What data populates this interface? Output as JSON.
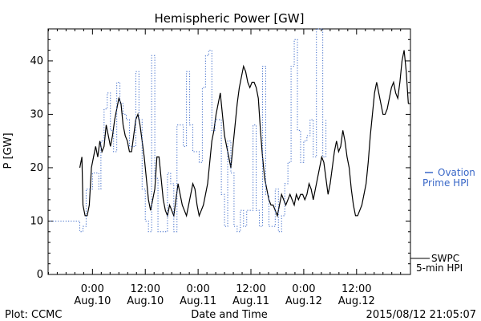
{
  "chart_data": {
    "type": "line",
    "title": "Hemispheric Power [GW]",
    "ylabel": "P [GW]",
    "xlabel": "Date and Time",
    "ylim": [
      0,
      46
    ],
    "yticks": [
      0,
      10,
      20,
      30,
      40
    ],
    "xlim": [
      -0.42,
      3.01
    ],
    "xticks": [
      {
        "x": 0.0,
        "line1": "0:00",
        "line2": "Aug.10"
      },
      {
        "x": 0.5,
        "line1": "12:00",
        "line2": "Aug.10"
      },
      {
        "x": 1.0,
        "line1": "0:00",
        "line2": "Aug.11"
      },
      {
        "x": 1.5,
        "line1": "12:00",
        "line2": "Aug.11"
      },
      {
        "x": 2.0,
        "line1": "0:00",
        "line2": "Aug.12"
      },
      {
        "x": 2.5,
        "line1": "12:00",
        "line2": "Aug.12"
      }
    ],
    "x_units": "days since 2015-08-10 00:00",
    "series": [
      {
        "name": "SWPC 5-min HPI",
        "legend_line1": "SWPC",
        "legend_line2": "5-min HPI",
        "color": "#000000",
        "style": "solid",
        "points": [
          [
            -0.12,
            20
          ],
          [
            -0.1,
            22
          ],
          [
            -0.09,
            13
          ],
          [
            -0.07,
            11
          ],
          [
            -0.05,
            11
          ],
          [
            -0.03,
            13
          ],
          [
            -0.01,
            20
          ],
          [
            0.01,
            22
          ],
          [
            0.03,
            24
          ],
          [
            0.05,
            22
          ],
          [
            0.07,
            25
          ],
          [
            0.09,
            23
          ],
          [
            0.11,
            24
          ],
          [
            0.13,
            28
          ],
          [
            0.15,
            26
          ],
          [
            0.17,
            24
          ],
          [
            0.19,
            26
          ],
          [
            0.21,
            29
          ],
          [
            0.23,
            31
          ],
          [
            0.25,
            33
          ],
          [
            0.27,
            32
          ],
          [
            0.29,
            28
          ],
          [
            0.31,
            26
          ],
          [
            0.33,
            25
          ],
          [
            0.35,
            23
          ],
          [
            0.37,
            23
          ],
          [
            0.39,
            26
          ],
          [
            0.41,
            29
          ],
          [
            0.43,
            30
          ],
          [
            0.45,
            28
          ],
          [
            0.47,
            25
          ],
          [
            0.49,
            22
          ],
          [
            0.51,
            18
          ],
          [
            0.53,
            14
          ],
          [
            0.55,
            12
          ],
          [
            0.57,
            14
          ],
          [
            0.59,
            16
          ],
          [
            0.61,
            22
          ],
          [
            0.63,
            22
          ],
          [
            0.65,
            18
          ],
          [
            0.67,
            14
          ],
          [
            0.69,
            12
          ],
          [
            0.71,
            11
          ],
          [
            0.73,
            13
          ],
          [
            0.75,
            12
          ],
          [
            0.77,
            11
          ],
          [
            0.79,
            14
          ],
          [
            0.81,
            17
          ],
          [
            0.83,
            15
          ],
          [
            0.85,
            13
          ],
          [
            0.87,
            12
          ],
          [
            0.89,
            11
          ],
          [
            0.91,
            13
          ],
          [
            0.93,
            15
          ],
          [
            0.95,
            17
          ],
          [
            0.97,
            16
          ],
          [
            0.99,
            13
          ],
          [
            1.01,
            11
          ],
          [
            1.03,
            12
          ],
          [
            1.05,
            13
          ],
          [
            1.07,
            15
          ],
          [
            1.09,
            17
          ],
          [
            1.11,
            21
          ],
          [
            1.13,
            25
          ],
          [
            1.15,
            27
          ],
          [
            1.17,
            30
          ],
          [
            1.19,
            32
          ],
          [
            1.21,
            34
          ],
          [
            1.23,
            30
          ],
          [
            1.25,
            26
          ],
          [
            1.27,
            24
          ],
          [
            1.29,
            22
          ],
          [
            1.31,
            20
          ],
          [
            1.33,
            24
          ],
          [
            1.35,
            28
          ],
          [
            1.37,
            32
          ],
          [
            1.39,
            35
          ],
          [
            1.41,
            37
          ],
          [
            1.43,
            39
          ],
          [
            1.45,
            38
          ],
          [
            1.47,
            36
          ],
          [
            1.49,
            35
          ],
          [
            1.51,
            36
          ],
          [
            1.53,
            36
          ],
          [
            1.55,
            35
          ],
          [
            1.57,
            33
          ],
          [
            1.59,
            27
          ],
          [
            1.61,
            22
          ],
          [
            1.63,
            18
          ],
          [
            1.65,
            16
          ],
          [
            1.67,
            14
          ],
          [
            1.69,
            13
          ],
          [
            1.71,
            13
          ],
          [
            1.73,
            12
          ],
          [
            1.75,
            11
          ],
          [
            1.77,
            13
          ],
          [
            1.79,
            15
          ],
          [
            1.81,
            14
          ],
          [
            1.83,
            13
          ],
          [
            1.85,
            14
          ],
          [
            1.87,
            15
          ],
          [
            1.89,
            14
          ],
          [
            1.91,
            13
          ],
          [
            1.93,
            15
          ],
          [
            1.95,
            14
          ],
          [
            1.97,
            15
          ],
          [
            1.99,
            15
          ],
          [
            2.01,
            14
          ],
          [
            2.03,
            15
          ],
          [
            2.05,
            17
          ],
          [
            2.07,
            16
          ],
          [
            2.09,
            14
          ],
          [
            2.11,
            16
          ],
          [
            2.13,
            18
          ],
          [
            2.15,
            20
          ],
          [
            2.17,
            22
          ],
          [
            2.19,
            21
          ],
          [
            2.21,
            18
          ],
          [
            2.23,
            15
          ],
          [
            2.25,
            17
          ],
          [
            2.27,
            20
          ],
          [
            2.29,
            23
          ],
          [
            2.31,
            25
          ],
          [
            2.33,
            23
          ],
          [
            2.35,
            24
          ],
          [
            2.37,
            27
          ],
          [
            2.39,
            25
          ],
          [
            2.41,
            22
          ],
          [
            2.43,
            20
          ],
          [
            2.45,
            16
          ],
          [
            2.47,
            13
          ],
          [
            2.49,
            11
          ],
          [
            2.51,
            11
          ],
          [
            2.53,
            12
          ],
          [
            2.55,
            13
          ],
          [
            2.57,
            15
          ],
          [
            2.59,
            17
          ],
          [
            2.61,
            21
          ],
          [
            2.63,
            26
          ],
          [
            2.65,
            30
          ],
          [
            2.67,
            34
          ],
          [
            2.69,
            36
          ],
          [
            2.71,
            34
          ],
          [
            2.73,
            32
          ],
          [
            2.75,
            30
          ],
          [
            2.77,
            30
          ],
          [
            2.79,
            31
          ],
          [
            2.81,
            33
          ],
          [
            2.83,
            35
          ],
          [
            2.85,
            36
          ],
          [
            2.87,
            34
          ],
          [
            2.89,
            33
          ],
          [
            2.91,
            36
          ],
          [
            2.93,
            40
          ],
          [
            2.95,
            42
          ],
          [
            2.97,
            38
          ],
          [
            2.99,
            32
          ]
        ]
      },
      {
        "name": "Ovation Prime HPI",
        "legend_line1": "Ovation",
        "legend_line2": "Prime HPI",
        "color": "#3a68c8",
        "style": "dotted-step",
        "points": [
          [
            -0.4,
            10
          ],
          [
            -0.39,
            10
          ],
          [
            -0.2,
            10
          ],
          [
            -0.12,
            8
          ],
          [
            -0.09,
            9
          ],
          [
            -0.06,
            16
          ],
          [
            -0.03,
            16
          ],
          [
            0.0,
            19
          ],
          [
            0.03,
            19
          ],
          [
            0.06,
            16
          ],
          [
            0.08,
            25
          ],
          [
            0.11,
            31
          ],
          [
            0.14,
            34
          ],
          [
            0.17,
            27
          ],
          [
            0.2,
            23
          ],
          [
            0.23,
            36
          ],
          [
            0.26,
            32
          ],
          [
            0.29,
            30
          ],
          [
            0.32,
            29
          ],
          [
            0.35,
            24
          ],
          [
            0.38,
            24
          ],
          [
            0.41,
            38
          ],
          [
            0.44,
            29
          ],
          [
            0.47,
            16
          ],
          [
            0.5,
            10
          ],
          [
            0.53,
            8
          ],
          [
            0.56,
            41
          ],
          [
            0.59,
            18
          ],
          [
            0.62,
            8
          ],
          [
            0.65,
            8
          ],
          [
            0.68,
            8
          ],
          [
            0.71,
            19
          ],
          [
            0.74,
            17
          ],
          [
            0.77,
            8
          ],
          [
            0.8,
            28
          ],
          [
            0.83,
            28
          ],
          [
            0.86,
            24
          ],
          [
            0.89,
            38
          ],
          [
            0.92,
            28
          ],
          [
            0.95,
            23
          ],
          [
            0.98,
            23
          ],
          [
            1.01,
            21
          ],
          [
            1.04,
            35
          ],
          [
            1.07,
            41
          ],
          [
            1.1,
            42
          ],
          [
            1.13,
            27
          ],
          [
            1.16,
            29
          ],
          [
            1.19,
            29
          ],
          [
            1.22,
            15
          ],
          [
            1.25,
            9
          ],
          [
            1.28,
            25
          ],
          [
            1.31,
            19
          ],
          [
            1.34,
            9
          ],
          [
            1.37,
            8
          ],
          [
            1.4,
            12
          ],
          [
            1.43,
            9
          ],
          [
            1.46,
            12
          ],
          [
            1.49,
            12
          ],
          [
            1.52,
            28
          ],
          [
            1.55,
            12
          ],
          [
            1.58,
            9
          ],
          [
            1.61,
            39
          ],
          [
            1.64,
            15
          ],
          [
            1.67,
            9
          ],
          [
            1.7,
            9
          ],
          [
            1.73,
            16
          ],
          [
            1.76,
            8
          ],
          [
            1.79,
            11
          ],
          [
            1.82,
            17
          ],
          [
            1.85,
            21
          ],
          [
            1.88,
            39
          ],
          [
            1.91,
            44
          ],
          [
            1.94,
            27
          ],
          [
            1.97,
            21
          ],
          [
            2.0,
            25
          ],
          [
            2.03,
            26
          ],
          [
            2.06,
            29
          ],
          [
            2.09,
            22
          ],
          [
            2.12,
            46
          ],
          [
            2.15,
            46
          ],
          [
            2.18,
            22
          ],
          [
            2.21,
            29
          ]
        ]
      }
    ]
  },
  "footer": {
    "left": "Plot: CCMC",
    "right": "2015/08/12 21:05:07"
  }
}
